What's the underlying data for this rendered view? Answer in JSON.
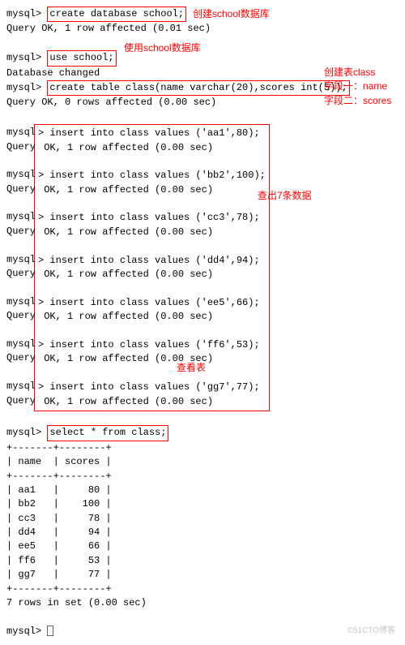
{
  "colors": {
    "box": "#ff0000",
    "text": "#000000",
    "cursor_border": "#666666"
  },
  "prompt": "mysql>",
  "lines": {
    "create_db": "create database school;",
    "create_db_result": "Query OK, 1 row affected (0.01 sec)",
    "use_db": "use school;",
    "use_db_result": "Database changed",
    "create_tbl": "create table class(name varchar(20),scores int(5));",
    "create_tbl_result": "Query OK, 0 rows affected (0.00 sec)",
    "select": "select * from class;",
    "rows_summary": "7 rows in set (0.00 sec)"
  },
  "inserts": [
    {
      "cmd": "insert into class values ('aa1',80);",
      "res": "OK, 1 row affected (0.00 sec)"
    },
    {
      "cmd": "insert into class values ('bb2',100);",
      "res": "OK, 1 row affected (0.00 sec)"
    },
    {
      "cmd": "insert into class values ('cc3',78);",
      "res": "OK, 1 row affected (0.00 sec)"
    },
    {
      "cmd": "insert into class values ('dd4',94);",
      "res": "OK, 1 row affected (0.00 sec)"
    },
    {
      "cmd": "insert into class values ('ee5',66);",
      "res": "OK, 1 row affected (0.00 sec)"
    },
    {
      "cmd": "insert into class values ('ff6',53);",
      "res": "OK, 1 row affected (0.00 sec)"
    },
    {
      "cmd": "insert into class values ('gg7',77);",
      "res": "OK, 1 row affected (0.00 sec)"
    }
  ],
  "annotations": {
    "create_db": "创建school数据库",
    "use_db": "使用school数据库",
    "create_tbl": "创建表class\n字段一：name\n字段二：scores",
    "inserts": "查出7条数据",
    "select": "查看表"
  },
  "table": {
    "border": "+-------+--------+",
    "header": "| name  | scores |",
    "rows": [
      "| aa1   |     80 |",
      "| bb2   |    100 |",
      "| cc3   |     78 |",
      "| dd4   |     94 |",
      "| ee5   |     66 |",
      "| ff6   |     53 |",
      "| gg7   |     77 |"
    ]
  },
  "watermark": "©51CTO博客"
}
